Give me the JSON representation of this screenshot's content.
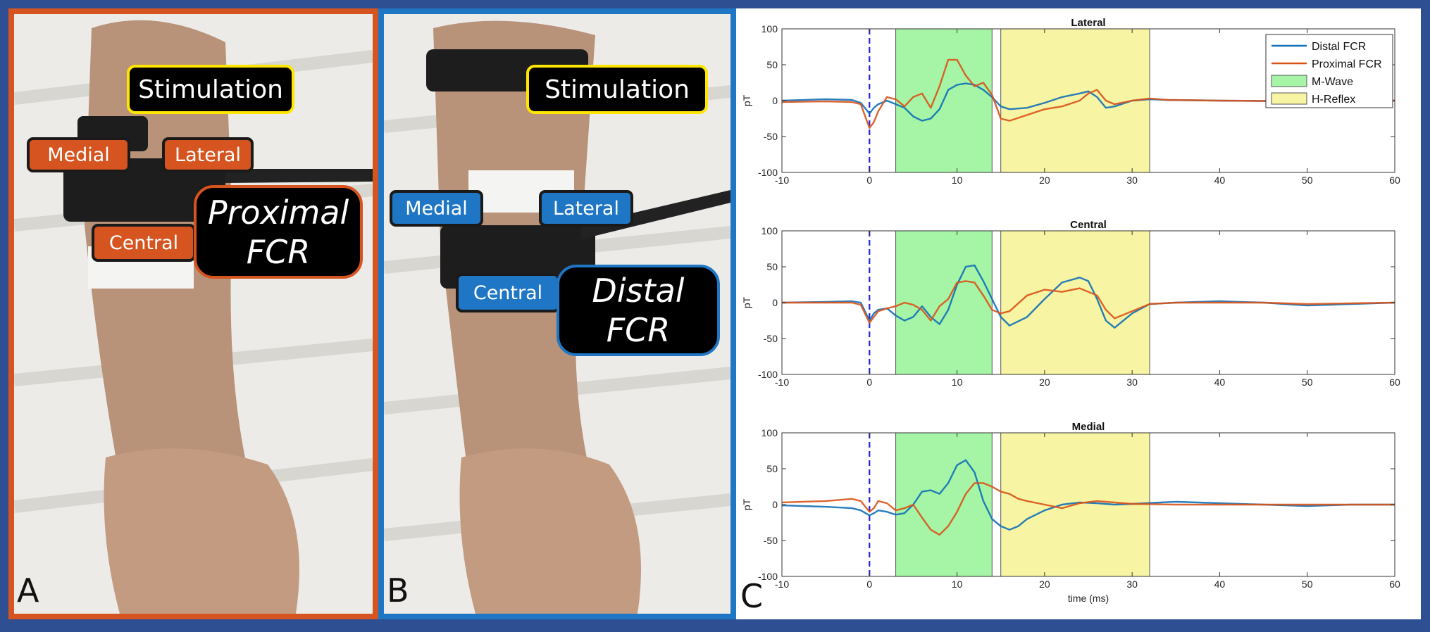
{
  "panels": {
    "a": {
      "letter": "A",
      "stimulation": "Stimulation",
      "medial": "Medial",
      "lateral": "Lateral",
      "central": "Central",
      "electrode_line1": "Proximal",
      "electrode_line2": "FCR",
      "border_color": "#d5541f"
    },
    "b": {
      "letter": "B",
      "stimulation": "Stimulation",
      "medial": "Medial",
      "lateral": "Lateral",
      "central": "Central",
      "electrode_line1": "Distal",
      "electrode_line2": "FCR",
      "border_color": "#1f76c4"
    },
    "c": {
      "letter": "C"
    }
  },
  "colors": {
    "background": "#2f4f93",
    "distal": "#0f6fb8",
    "proximal": "#d95318",
    "m_wave": "#a6f5a6",
    "h_reflex": "#f7f5a3",
    "stim_marker": "#2222dd"
  },
  "chart_data": [
    {
      "type": "line",
      "title": "Lateral",
      "xlabel": "",
      "ylabel": "pT",
      "xlim": [
        -10,
        60
      ],
      "ylim": [
        -100,
        100
      ],
      "xticks": [
        -10,
        0,
        10,
        20,
        30,
        40,
        50,
        60
      ],
      "yticks": [
        100,
        50,
        0,
        -50,
        -100
      ],
      "legend": [
        "Distal FCR",
        "Proximal FCR",
        "M-Wave",
        "H-Reflex"
      ],
      "legend_position": "top-right",
      "shaded_regions": [
        {
          "name": "M-Wave",
          "x": [
            3,
            14
          ]
        },
        {
          "name": "H-Reflex",
          "x": [
            15,
            32
          ]
        }
      ],
      "vline": 0,
      "series": [
        {
          "name": "Distal FCR",
          "x": [
            -10,
            -5,
            -2,
            -1,
            0,
            0.5,
            1,
            2,
            3,
            4,
            5,
            6,
            7,
            8,
            9,
            10,
            11,
            12,
            13,
            14,
            15,
            16,
            18,
            20,
            22,
            24,
            25,
            26,
            27,
            28,
            30,
            32,
            34,
            40,
            50,
            60
          ],
          "y": [
            0,
            2,
            1,
            -3,
            -18,
            -10,
            -5,
            0,
            -5,
            -10,
            -22,
            -28,
            -25,
            -12,
            15,
            22,
            24,
            22,
            15,
            5,
            -8,
            -12,
            -10,
            -3,
            5,
            10,
            13,
            5,
            -10,
            -8,
            0,
            2,
            1,
            0,
            -1,
            0
          ]
        },
        {
          "name": "Proximal FCR",
          "x": [
            -10,
            -5,
            -2,
            -1,
            0,
            0.5,
            1,
            2,
            3,
            4,
            5,
            6,
            7,
            8,
            9,
            10,
            11,
            12,
            13,
            14,
            15,
            16,
            18,
            20,
            22,
            24,
            25,
            26,
            27,
            28,
            30,
            32,
            34,
            40,
            50,
            60
          ],
          "y": [
            -2,
            -1,
            -2,
            -5,
            -38,
            -30,
            -15,
            5,
            2,
            -8,
            5,
            10,
            -10,
            20,
            57,
            57,
            35,
            20,
            25,
            8,
            -25,
            -28,
            -20,
            -12,
            -8,
            0,
            10,
            15,
            0,
            -5,
            0,
            3,
            1,
            0,
            -1,
            0
          ]
        }
      ]
    },
    {
      "type": "line",
      "title": "Central",
      "xlabel": "",
      "ylabel": "pT",
      "xlim": [
        -10,
        60
      ],
      "ylim": [
        -100,
        100
      ],
      "xticks": [
        -10,
        0,
        10,
        20,
        30,
        40,
        50,
        60
      ],
      "yticks": [
        100,
        50,
        0,
        -50,
        -100
      ],
      "shaded_regions": [
        {
          "name": "M-Wave",
          "x": [
            3,
            14
          ]
        },
        {
          "name": "H-Reflex",
          "x": [
            15,
            32
          ]
        }
      ],
      "vline": 0,
      "series": [
        {
          "name": "Distal FCR",
          "x": [
            -10,
            -5,
            -2,
            -1,
            0,
            0.5,
            1,
            2,
            3,
            4,
            5,
            6,
            7,
            8,
            9,
            10,
            11,
            12,
            13,
            14,
            15,
            16,
            18,
            20,
            22,
            24,
            25,
            26,
            27,
            28,
            30,
            32,
            35,
            40,
            45,
            50,
            60
          ],
          "y": [
            0,
            1,
            2,
            0,
            -25,
            -15,
            -10,
            -8,
            -18,
            -25,
            -20,
            -5,
            -20,
            -30,
            -10,
            25,
            50,
            52,
            30,
            5,
            -20,
            -32,
            -20,
            5,
            28,
            35,
            30,
            5,
            -25,
            -35,
            -15,
            -2,
            0,
            2,
            0,
            -4,
            0
          ]
        },
        {
          "name": "Proximal FCR",
          "x": [
            -10,
            -5,
            -2,
            -1,
            0,
            0.5,
            1,
            2,
            3,
            4,
            5,
            6,
            7,
            8,
            9,
            10,
            11,
            12,
            13,
            14,
            15,
            16,
            18,
            20,
            22,
            24,
            25,
            26,
            27,
            28,
            30,
            32,
            35,
            40,
            45,
            50,
            60
          ],
          "y": [
            0,
            0,
            0,
            -3,
            -28,
            -20,
            -12,
            -8,
            -5,
            0,
            -3,
            -10,
            -25,
            -5,
            5,
            28,
            30,
            28,
            10,
            -10,
            -15,
            -12,
            10,
            18,
            15,
            20,
            15,
            10,
            -10,
            -22,
            -12,
            -2,
            0,
            0,
            0,
            -2,
            0
          ]
        }
      ]
    },
    {
      "type": "line",
      "title": "Medial",
      "xlabel": "time (ms)",
      "ylabel": "pT",
      "xlim": [
        -10,
        60
      ],
      "ylim": [
        -100,
        100
      ],
      "xticks": [
        -10,
        0,
        10,
        20,
        30,
        40,
        50,
        60
      ],
      "yticks": [
        100,
        50,
        0,
        -50,
        -100
      ],
      "shaded_regions": [
        {
          "name": "M-Wave",
          "x": [
            3,
            14
          ]
        },
        {
          "name": "H-Reflex",
          "x": [
            15,
            32
          ]
        }
      ],
      "vline": 0,
      "series": [
        {
          "name": "Distal FCR",
          "x": [
            -10,
            -5,
            -2,
            -1,
            0,
            0.5,
            1,
            2,
            3,
            4,
            5,
            6,
            7,
            8,
            9,
            10,
            11,
            12,
            13,
            14,
            15,
            16,
            17,
            18,
            20,
            22,
            24,
            26,
            28,
            30,
            35,
            40,
            45,
            50,
            55,
            60
          ],
          "y": [
            -1,
            -3,
            -5,
            -8,
            -15,
            -12,
            -8,
            -10,
            -14,
            -12,
            0,
            18,
            20,
            15,
            30,
            55,
            62,
            45,
            5,
            -20,
            -30,
            -35,
            -30,
            -20,
            -8,
            0,
            3,
            2,
            0,
            1,
            4,
            2,
            0,
            -2,
            0,
            0
          ]
        },
        {
          "name": "Proximal FCR",
          "x": [
            -10,
            -5,
            -2,
            -1,
            0,
            0.5,
            1,
            2,
            3,
            4,
            5,
            6,
            7,
            8,
            9,
            10,
            11,
            12,
            13,
            14,
            15,
            16,
            17,
            18,
            20,
            22,
            24,
            26,
            28,
            30,
            35,
            40,
            45,
            50,
            55,
            60
          ],
          "y": [
            3,
            5,
            8,
            5,
            -10,
            -5,
            5,
            2,
            -8,
            -5,
            0,
            -18,
            -35,
            -42,
            -30,
            -10,
            15,
            30,
            30,
            25,
            18,
            15,
            8,
            5,
            0,
            -5,
            2,
            5,
            3,
            1,
            0,
            0,
            0,
            0,
            0,
            0
          ]
        }
      ]
    }
  ]
}
